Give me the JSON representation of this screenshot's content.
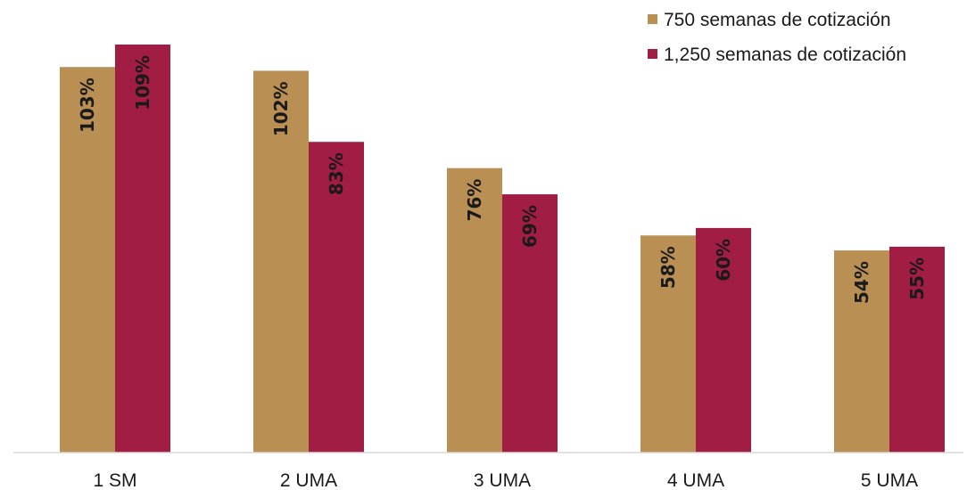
{
  "chart_data": {
    "type": "bar",
    "title": "",
    "xlabel": "",
    "ylabel": "",
    "categories": [
      "1 SM",
      "2 UMA",
      "3 UMA",
      "4 UMA",
      "5 UMA"
    ],
    "series": [
      {
        "name": "750 semanas de cotización",
        "color": "#b98f54",
        "values": [
          103,
          102,
          76,
          58,
          54
        ],
        "labels": [
          "103%",
          "102%",
          "76%",
          "58%",
          "54%"
        ]
      },
      {
        "name": "1,250 semanas de cotización",
        "color": "#a11d44",
        "values": [
          109,
          83,
          69,
          60,
          55
        ],
        "labels": [
          "109%",
          "83%",
          "69%",
          "60%",
          "55%"
        ]
      }
    ],
    "ylim": [
      0,
      119
    ],
    "grid": false,
    "legend_position": "top-right",
    "data_label_orientation": "vertical"
  }
}
